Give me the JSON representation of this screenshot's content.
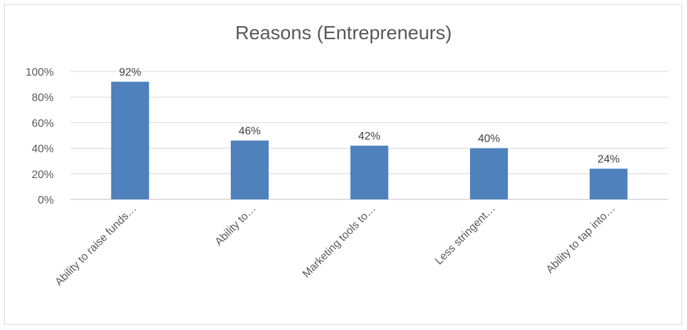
{
  "chart_data": {
    "type": "bar",
    "title": "Reasons (Entrepreneurs)",
    "categories": [
      "Ability to raise funds…",
      "Ability to…",
      "Marketing tools to…",
      "Less stringent…",
      "Ability to tap into…"
    ],
    "values": [
      92,
      46,
      42,
      40,
      24
    ],
    "data_labels": [
      "92%",
      "46%",
      "42%",
      "40%",
      "24%"
    ],
    "y_ticks": [
      "0%",
      "20%",
      "40%",
      "60%",
      "80%",
      "100%"
    ],
    "ylim": [
      0,
      100
    ],
    "grid": true,
    "legend": "none",
    "bar_color": "#4f81bd"
  }
}
